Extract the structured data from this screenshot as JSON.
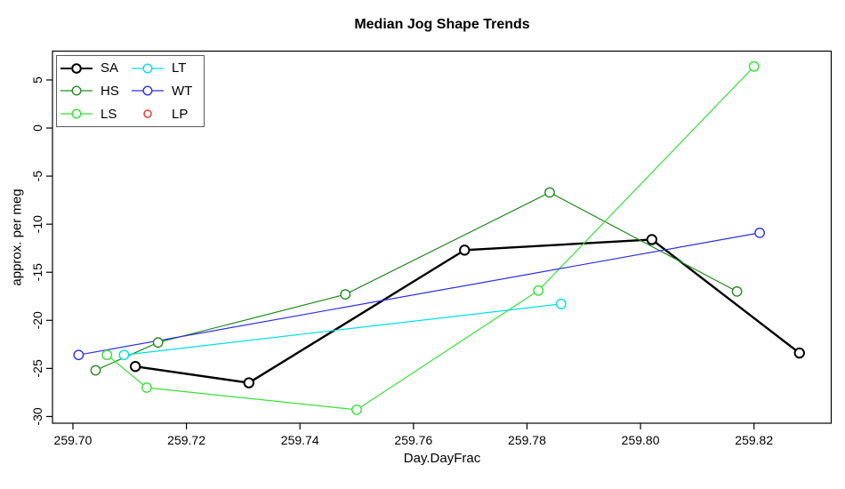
{
  "chart_data": {
    "type": "line",
    "title": "Median Jog Shape Trends",
    "xlabel": "Day.DayFrac",
    "ylabel": "approx. per meg",
    "xlim": [
      259.6964,
      259.8336
    ],
    "ylim": [
      -30.7,
      8.0
    ],
    "xticks": [
      259.7,
      259.72,
      259.74,
      259.76,
      259.78,
      259.8,
      259.82
    ],
    "xtick_labels": [
      "259.70",
      "259.72",
      "259.74",
      "259.76",
      "259.78",
      "259.80",
      "259.82"
    ],
    "yticks": [
      5,
      0,
      -5,
      -10,
      -15,
      -20,
      -25,
      -30
    ],
    "ytick_labels": [
      "5",
      "0",
      "-5",
      "-10",
      "-15",
      "-20",
      "-25",
      "-30"
    ],
    "grid": false,
    "legend_position": "top-left",
    "marker": "open-circle",
    "series": [
      {
        "name": "SA",
        "color": "#000000",
        "line_width": 2.4,
        "marker_stroke": 2.0,
        "legend_has_line": true,
        "points": [
          [
            259.711,
            -24.8
          ],
          [
            259.731,
            -26.5
          ],
          [
            259.769,
            -12.7
          ],
          [
            259.802,
            -11.6
          ],
          [
            259.828,
            -23.4
          ]
        ]
      },
      {
        "name": "HS",
        "color": "#228B22",
        "line_width": 1.2,
        "marker_stroke": 1.4,
        "legend_has_line": true,
        "points": [
          [
            259.704,
            -25.2
          ],
          [
            259.715,
            -22.3
          ],
          [
            259.748,
            -17.3
          ],
          [
            259.784,
            -6.7
          ],
          [
            259.817,
            -17.0
          ]
        ]
      },
      {
        "name": "LS",
        "color": "#38E038",
        "line_width": 1.2,
        "marker_stroke": 1.4,
        "legend_has_line": true,
        "points": [
          [
            259.706,
            -23.6
          ],
          [
            259.713,
            -27.0
          ],
          [
            259.75,
            -29.3
          ],
          [
            259.782,
            -16.9
          ],
          [
            259.82,
            6.4
          ]
        ]
      },
      {
        "name": "LT",
        "color": "#00E0E0",
        "line_width": 1.2,
        "marker_stroke": 1.4,
        "legend_has_line": true,
        "points": [
          [
            259.709,
            -23.6
          ],
          [
            259.786,
            -18.3
          ]
        ]
      },
      {
        "name": "WT",
        "color": "#2E2EE6",
        "line_width": 1.2,
        "marker_stroke": 1.4,
        "legend_has_line": true,
        "points": [
          [
            259.701,
            -23.6
          ],
          [
            259.821,
            -10.9
          ]
        ]
      },
      {
        "name": "LP",
        "color": "#E63333",
        "line_width": 1.2,
        "marker_stroke": 1.4,
        "legend_has_line": false,
        "points": []
      }
    ]
  }
}
